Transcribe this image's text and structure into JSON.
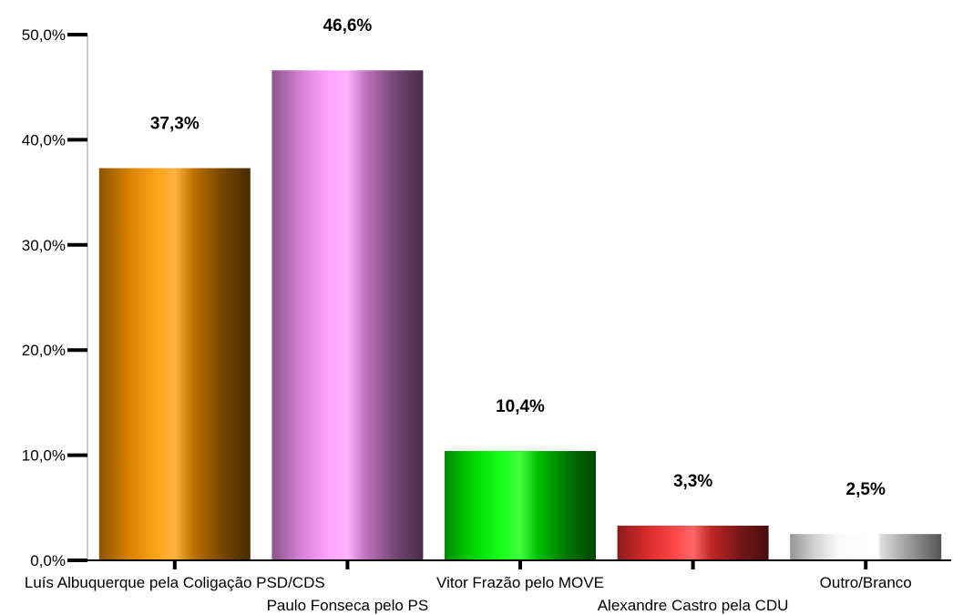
{
  "chart_data": {
    "type": "bar",
    "title": "",
    "xlabel": "",
    "ylabel": "",
    "ylim": [
      0,
      50
    ],
    "y_ticks": [
      "0,0%",
      "10,0%",
      "20,0%",
      "30,0%",
      "40,0%",
      "50,0%"
    ],
    "y_tick_values": [
      0,
      10,
      20,
      30,
      40,
      50
    ],
    "categories": [
      "Luís Albuquerque pela Coligação PSD/CDS",
      "Paulo Fonseca pelo PS",
      "Vitor Frazão pelo MOVE",
      "Alexandre Castro pela CDU",
      "Outro/Branco"
    ],
    "values": [
      37.3,
      46.6,
      10.4,
      3.3,
      2.5
    ],
    "value_labels": [
      "37,3%",
      "46,6%",
      "10,4%",
      "3,3%",
      "2,5%"
    ],
    "colors": [
      "#ff9900",
      "#ff99ff",
      "#00ff00",
      "#ff3333",
      "#ffffff"
    ],
    "grid": false,
    "legend": "none"
  }
}
